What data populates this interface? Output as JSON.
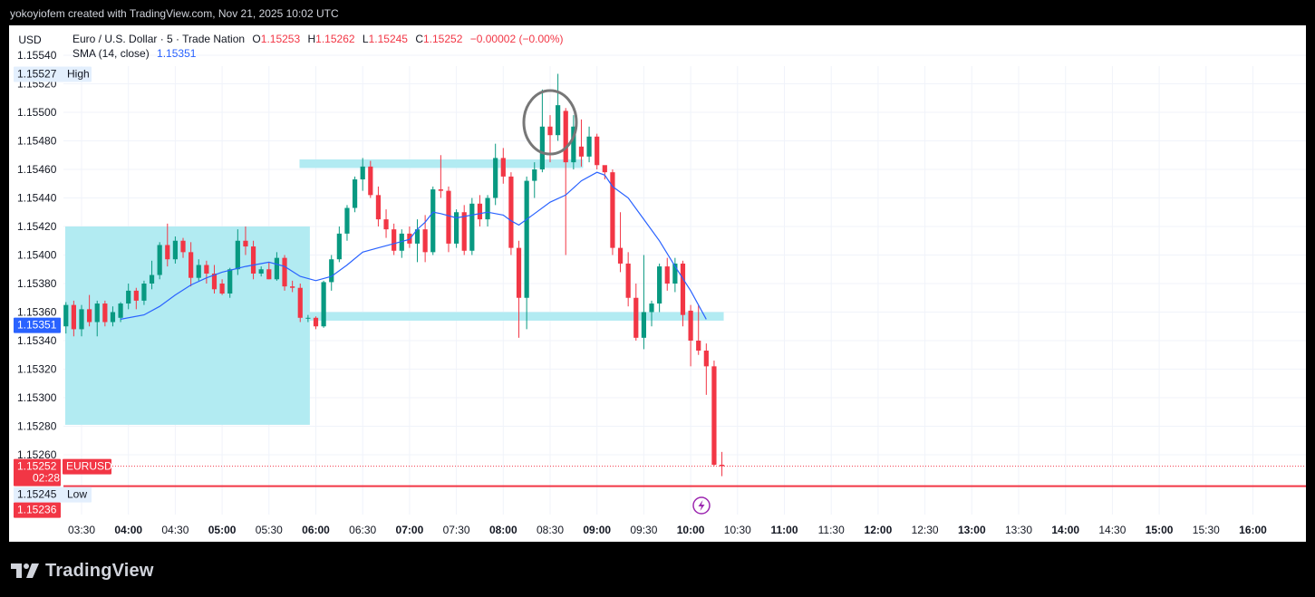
{
  "header": {
    "attribution": "yokoyiofem created with TradingView.com, Nov 21, 2025 10:02 UTC"
  },
  "footer": {
    "brand": "TradingView"
  },
  "chart_data": {
    "type": "candlestick",
    "currency_button": "USD",
    "legend": {
      "title": "Euro / U.S. Dollar · 5 · Trade Nation",
      "o_label": "O",
      "o_value": "1.15253",
      "h_label": "H",
      "h_value": "1.15262",
      "l_label": "L",
      "l_value": "1.15245",
      "c_label": "C",
      "c_value": "1.15252",
      "change": "−0.00002 (−0.00%)",
      "indicator_name": "SMA (14, close)",
      "indicator_value": "1.15351"
    },
    "y_ticks": [
      "1.15540",
      "1.15520",
      "1.15500",
      "1.15480",
      "1.15460",
      "1.15440",
      "1.15420",
      "1.15400",
      "1.15380",
      "1.15360",
      "1.15340",
      "1.15320",
      "1.15300",
      "1.15280",
      "1.15260"
    ],
    "x_ticks": [
      "03:30",
      "04:00",
      "04:30",
      "05:00",
      "05:30",
      "06:00",
      "06:30",
      "07:00",
      "07:30",
      "08:00",
      "08:30",
      "09:00",
      "09:30",
      "10:00",
      "10:30",
      "11:00",
      "11:30",
      "12:00",
      "12:30",
      "13:00",
      "13:30",
      "14:00",
      "14:30",
      "15:00",
      "15:30",
      "16:00"
    ],
    "price_labels": {
      "high_value": "1.15527",
      "high_label": "High",
      "sma_value": "1.15351",
      "last_value": "1.15252",
      "symbol": "EURUSD",
      "countdown": "02:28",
      "low_value": "1.15245",
      "low_label": "Low",
      "extra_value": "1.15236"
    },
    "zones": [
      {
        "name": "range-box",
        "x_start": "03:30",
        "x_end": "05:55",
        "y_low": 1.15281,
        "y_high": 1.1542
      },
      {
        "name": "resistance-zone",
        "x_start": "06:00",
        "x_end": "08:50",
        "y_low": 1.15461,
        "y_high": 1.15467
      },
      {
        "name": "support-zone",
        "x_start": "06:00",
        "x_end": "10:20",
        "y_low": 1.15354,
        "y_high": 1.1536
      }
    ],
    "horizontal_line": {
      "value": 1.15238,
      "color": "#f23645"
    },
    "annotation_circle": {
      "x": "08:30",
      "y": 1.15493
    },
    "colors": {
      "up": "#089981",
      "down": "#f23645",
      "sma": "#2962ff",
      "zone": "#b2ebf2",
      "last_bg": "#f23645",
      "sma_bg": "#2962ff"
    },
    "candles": [
      {
        "t": "03:20",
        "o": 1.1535,
        "h": 1.15367,
        "l": 1.15345,
        "c": 1.15365
      },
      {
        "t": "03:25",
        "o": 1.15365,
        "h": 1.15368,
        "l": 1.15343,
        "c": 1.15348
      },
      {
        "t": "03:30",
        "o": 1.15348,
        "h": 1.15365,
        "l": 1.15343,
        "c": 1.15362
      },
      {
        "t": "03:35",
        "o": 1.15362,
        "h": 1.15372,
        "l": 1.1535,
        "c": 1.15353
      },
      {
        "t": "03:40",
        "o": 1.15353,
        "h": 1.15368,
        "l": 1.15343,
        "c": 1.15366
      },
      {
        "t": "03:45",
        "o": 1.15366,
        "h": 1.15368,
        "l": 1.1535,
        "c": 1.15353
      },
      {
        "t": "03:50",
        "o": 1.15353,
        "h": 1.15364,
        "l": 1.1535,
        "c": 1.1536
      },
      {
        "t": "03:55",
        "o": 1.15356,
        "h": 1.15367,
        "l": 1.15353,
        "c": 1.15366
      },
      {
        "t": "04:00",
        "o": 1.15366,
        "h": 1.1538,
        "l": 1.15362,
        "c": 1.15375
      },
      {
        "t": "04:05",
        "o": 1.15375,
        "h": 1.15377,
        "l": 1.15362,
        "c": 1.15368
      },
      {
        "t": "04:10",
        "o": 1.15368,
        "h": 1.15382,
        "l": 1.15365,
        "c": 1.1538
      },
      {
        "t": "04:15",
        "o": 1.1538,
        "h": 1.15396,
        "l": 1.15376,
        "c": 1.15386
      },
      {
        "t": "04:20",
        "o": 1.15386,
        "h": 1.15409,
        "l": 1.15383,
        "c": 1.15407
      },
      {
        "t": "04:25",
        "o": 1.15407,
        "h": 1.15422,
        "l": 1.15392,
        "c": 1.15397
      },
      {
        "t": "04:30",
        "o": 1.15397,
        "h": 1.15413,
        "l": 1.15394,
        "c": 1.1541
      },
      {
        "t": "04:35",
        "o": 1.1541,
        "h": 1.15412,
        "l": 1.15398,
        "c": 1.15402
      },
      {
        "t": "04:40",
        "o": 1.15402,
        "h": 1.15409,
        "l": 1.15378,
        "c": 1.15384
      },
      {
        "t": "04:45",
        "o": 1.15384,
        "h": 1.15397,
        "l": 1.15382,
        "c": 1.15393
      },
      {
        "t": "04:50",
        "o": 1.15393,
        "h": 1.15396,
        "l": 1.1538,
        "c": 1.15387
      },
      {
        "t": "04:55",
        "o": 1.15387,
        "h": 1.15393,
        "l": 1.15373,
        "c": 1.15376
      },
      {
        "t": "05:00",
        "o": 1.1538,
        "h": 1.15383,
        "l": 1.15372,
        "c": 1.15373
      },
      {
        "t": "05:05",
        "o": 1.15373,
        "h": 1.15391,
        "l": 1.1537,
        "c": 1.1539
      },
      {
        "t": "05:10",
        "o": 1.1539,
        "h": 1.15418,
        "l": 1.15386,
        "c": 1.1541
      },
      {
        "t": "05:15",
        "o": 1.1541,
        "h": 1.1542,
        "l": 1.154,
        "c": 1.15406
      },
      {
        "t": "05:20",
        "o": 1.15406,
        "h": 1.1541,
        "l": 1.15383,
        "c": 1.15387
      },
      {
        "t": "05:25",
        "o": 1.15387,
        "h": 1.15392,
        "l": 1.15385,
        "c": 1.1539
      },
      {
        "t": "05:30",
        "o": 1.1539,
        "h": 1.15395,
        "l": 1.15383,
        "c": 1.15383
      },
      {
        "t": "05:35",
        "o": 1.15383,
        "h": 1.15402,
        "l": 1.15382,
        "c": 1.15398
      },
      {
        "t": "05:40",
        "o": 1.15398,
        "h": 1.154,
        "l": 1.15375,
        "c": 1.15378
      },
      {
        "t": "05:45",
        "o": 1.15378,
        "h": 1.15382,
        "l": 1.15374,
        "c": 1.15377
      },
      {
        "t": "05:50",
        "o": 1.15377,
        "h": 1.1538,
        "l": 1.15353,
        "c": 1.15356
      },
      {
        "t": "05:55",
        "o": 1.15356,
        "h": 1.15358,
        "l": 1.15353,
        "c": 1.15356
      },
      {
        "t": "06:00",
        "o": 1.15356,
        "h": 1.15357,
        "l": 1.15348,
        "c": 1.1535
      },
      {
        "t": "06:05",
        "o": 1.1535,
        "h": 1.15382,
        "l": 1.15349,
        "c": 1.15381
      },
      {
        "t": "06:10",
        "o": 1.15381,
        "h": 1.154,
        "l": 1.15375,
        "c": 1.15397
      },
      {
        "t": "06:15",
        "o": 1.15397,
        "h": 1.1542,
        "l": 1.15395,
        "c": 1.15415
      },
      {
        "t": "06:20",
        "o": 1.15415,
        "h": 1.15435,
        "l": 1.1541,
        "c": 1.15433
      },
      {
        "t": "06:25",
        "o": 1.15433,
        "h": 1.15455,
        "l": 1.1543,
        "c": 1.15453
      },
      {
        "t": "06:30",
        "o": 1.15453,
        "h": 1.15468,
        "l": 1.15445,
        "c": 1.15462
      },
      {
        "t": "06:35",
        "o": 1.15462,
        "h": 1.15466,
        "l": 1.1544,
        "c": 1.15442
      },
      {
        "t": "06:40",
        "o": 1.15442,
        "h": 1.15448,
        "l": 1.1542,
        "c": 1.15425
      },
      {
        "t": "06:45",
        "o": 1.15425,
        "h": 1.15432,
        "l": 1.15412,
        "c": 1.15418
      },
      {
        "t": "06:50",
        "o": 1.15418,
        "h": 1.15422,
        "l": 1.154,
        "c": 1.15403
      },
      {
        "t": "06:55",
        "o": 1.15403,
        "h": 1.15418,
        "l": 1.15398,
        "c": 1.15415
      },
      {
        "t": "07:00",
        "o": 1.15415,
        "h": 1.1542,
        "l": 1.15405,
        "c": 1.15408
      },
      {
        "t": "07:05",
        "o": 1.15408,
        "h": 1.15425,
        "l": 1.15395,
        "c": 1.15418
      },
      {
        "t": "07:10",
        "o": 1.15418,
        "h": 1.15428,
        "l": 1.15395,
        "c": 1.15402
      },
      {
        "t": "07:15",
        "o": 1.15402,
        "h": 1.15448,
        "l": 1.154,
        "c": 1.15446
      },
      {
        "t": "07:20",
        "o": 1.15446,
        "h": 1.1547,
        "l": 1.1544,
        "c": 1.15445
      },
      {
        "t": "07:25",
        "o": 1.15445,
        "h": 1.15448,
        "l": 1.15402,
        "c": 1.15408
      },
      {
        "t": "07:30",
        "o": 1.15408,
        "h": 1.15432,
        "l": 1.15405,
        "c": 1.1543
      },
      {
        "t": "07:35",
        "o": 1.1543,
        "h": 1.15435,
        "l": 1.154,
        "c": 1.15403
      },
      {
        "t": "07:40",
        "o": 1.15403,
        "h": 1.1544,
        "l": 1.154,
        "c": 1.15436
      },
      {
        "t": "07:45",
        "o": 1.15436,
        "h": 1.15442,
        "l": 1.1542,
        "c": 1.15425
      },
      {
        "t": "07:50",
        "o": 1.15425,
        "h": 1.15442,
        "l": 1.1542,
        "c": 1.1544
      },
      {
        "t": "07:55",
        "o": 1.1544,
        "h": 1.15478,
        "l": 1.15435,
        "c": 1.15468
      },
      {
        "t": "08:00",
        "o": 1.15468,
        "h": 1.15475,
        "l": 1.1545,
        "c": 1.15455
      },
      {
        "t": "08:05",
        "o": 1.15455,
        "h": 1.15458,
        "l": 1.154,
        "c": 1.15405
      },
      {
        "t": "08:10",
        "o": 1.15405,
        "h": 1.1541,
        "l": 1.15342,
        "c": 1.1537
      },
      {
        "t": "08:15",
        "o": 1.1537,
        "h": 1.15455,
        "l": 1.15348,
        "c": 1.15452
      },
      {
        "t": "08:20",
        "o": 1.15452,
        "h": 1.15465,
        "l": 1.1544,
        "c": 1.1546
      },
      {
        "t": "08:25",
        "o": 1.1546,
        "h": 1.15516,
        "l": 1.15458,
        "c": 1.1549
      },
      {
        "t": "08:30",
        "o": 1.1549,
        "h": 1.15498,
        "l": 1.15465,
        "c": 1.15484
      },
      {
        "t": "08:35",
        "o": 1.15484,
        "h": 1.15527,
        "l": 1.1548,
        "c": 1.15505
      },
      {
        "t": "08:40",
        "o": 1.15501,
        "h": 1.15503,
        "l": 1.154,
        "c": 1.15465
      },
      {
        "t": "08:45",
        "o": 1.15465,
        "h": 1.15498,
        "l": 1.1546,
        "c": 1.1549
      },
      {
        "t": "08:50",
        "o": 1.15476,
        "h": 1.15495,
        "l": 1.15462,
        "c": 1.15469
      },
      {
        "t": "08:55",
        "o": 1.15469,
        "h": 1.1549,
        "l": 1.15465,
        "c": 1.15483
      },
      {
        "t": "09:00",
        "o": 1.15483,
        "h": 1.15485,
        "l": 1.1546,
        "c": 1.15463
      },
      {
        "t": "09:05",
        "o": 1.15463,
        "h": 1.15462,
        "l": 1.15453,
        "c": 1.15458
      },
      {
        "t": "09:10",
        "o": 1.15458,
        "h": 1.1546,
        "l": 1.154,
        "c": 1.15405
      },
      {
        "t": "09:15",
        "o": 1.15405,
        "h": 1.1543,
        "l": 1.15388,
        "c": 1.15394
      },
      {
        "t": "09:20",
        "o": 1.15394,
        "h": 1.15402,
        "l": 1.15364,
        "c": 1.1537
      },
      {
        "t": "09:25",
        "o": 1.1537,
        "h": 1.1538,
        "l": 1.1534,
        "c": 1.15342
      },
      {
        "t": "09:30",
        "o": 1.15342,
        "h": 1.154,
        "l": 1.15334,
        "c": 1.1536
      },
      {
        "t": "09:35",
        "o": 1.1536,
        "h": 1.15368,
        "l": 1.1535,
        "c": 1.15366
      },
      {
        "t": "09:40",
        "o": 1.15366,
        "h": 1.15394,
        "l": 1.1536,
        "c": 1.15392
      },
      {
        "t": "09:45",
        "o": 1.15392,
        "h": 1.15398,
        "l": 1.15375,
        "c": 1.1538
      },
      {
        "t": "09:50",
        "o": 1.1538,
        "h": 1.15398,
        "l": 1.15374,
        "c": 1.15394
      },
      {
        "t": "09:55",
        "o": 1.15394,
        "h": 1.15396,
        "l": 1.1535,
        "c": 1.15358
      },
      {
        "t": "10:00",
        "o": 1.15361,
        "h": 1.15365,
        "l": 1.15322,
        "c": 1.1534
      },
      {
        "t": "10:05",
        "o": 1.1534,
        "h": 1.15365,
        "l": 1.1533,
        "c": 1.15333
      },
      {
        "t": "10:10",
        "o": 1.15333,
        "h": 1.15338,
        "l": 1.15302,
        "c": 1.15322
      },
      {
        "t": "10:15",
        "o": 1.15322,
        "h": 1.15326,
        "l": 1.15252,
        "c": 1.15253
      },
      {
        "t": "10:20",
        "o": 1.15253,
        "h": 1.15262,
        "l": 1.15245,
        "c": 1.15252
      }
    ],
    "sma": [
      {
        "t": "03:55",
        "v": 1.15355
      },
      {
        "t": "04:10",
        "v": 1.15358
      },
      {
        "t": "04:20",
        "v": 1.15364
      },
      {
        "t": "04:30",
        "v": 1.15372
      },
      {
        "t": "04:40",
        "v": 1.15379
      },
      {
        "t": "04:50",
        "v": 1.15384
      },
      {
        "t": "05:00",
        "v": 1.15388
      },
      {
        "t": "05:15",
        "v": 1.15392
      },
      {
        "t": "05:30",
        "v": 1.15395
      },
      {
        "t": "05:40",
        "v": 1.15392
      },
      {
        "t": "05:50",
        "v": 1.15385
      },
      {
        "t": "06:00",
        "v": 1.15382
      },
      {
        "t": "06:10",
        "v": 1.15385
      },
      {
        "t": "06:20",
        "v": 1.15393
      },
      {
        "t": "06:30",
        "v": 1.15402
      },
      {
        "t": "06:40",
        "v": 1.15405
      },
      {
        "t": "06:50",
        "v": 1.15408
      },
      {
        "t": "07:00",
        "v": 1.15411
      },
      {
        "t": "07:05",
        "v": 1.15418
      },
      {
        "t": "07:10",
        "v": 1.15423
      },
      {
        "t": "07:15",
        "v": 1.1543
      },
      {
        "t": "07:20",
        "v": 1.15429
      },
      {
        "t": "07:30",
        "v": 1.15426
      },
      {
        "t": "07:40",
        "v": 1.15428
      },
      {
        "t": "07:50",
        "v": 1.1543
      },
      {
        "t": "08:00",
        "v": 1.15428
      },
      {
        "t": "08:05",
        "v": 1.15424
      },
      {
        "t": "08:10",
        "v": 1.15421
      },
      {
        "t": "08:20",
        "v": 1.15429
      },
      {
        "t": "08:30",
        "v": 1.15437
      },
      {
        "t": "08:40",
        "v": 1.15442
      },
      {
        "t": "08:50",
        "v": 1.15452
      },
      {
        "t": "09:00",
        "v": 1.15458
      },
      {
        "t": "09:05",
        "v": 1.15456
      },
      {
        "t": "09:10",
        "v": 1.15448
      },
      {
        "t": "09:20",
        "v": 1.1544
      },
      {
        "t": "09:30",
        "v": 1.15425
      },
      {
        "t": "09:40",
        "v": 1.1541
      },
      {
        "t": "09:50",
        "v": 1.15392
      },
      {
        "t": "10:00",
        "v": 1.15375
      },
      {
        "t": "10:10",
        "v": 1.15355
      }
    ]
  }
}
